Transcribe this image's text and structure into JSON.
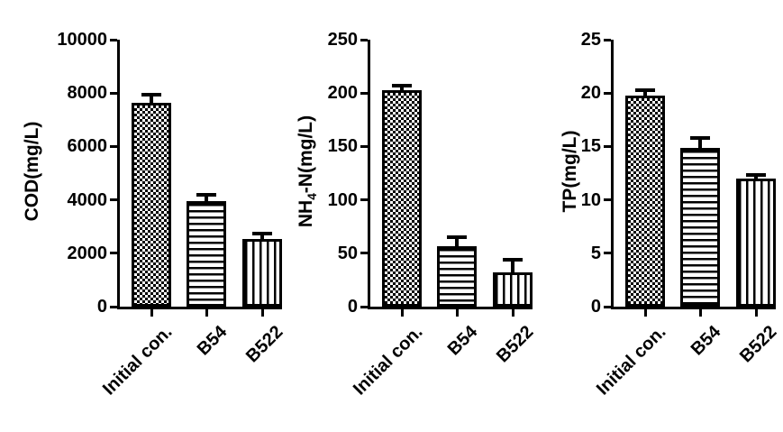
{
  "figure": {
    "background": "#ffffff",
    "ink_color": "#000000",
    "bar_fill": "#ffffff"
  },
  "chart_data": [
    {
      "type": "bar",
      "title": "",
      "ylabel": "COD(mg/L)",
      "ylabel_segments": [
        {
          "text": "COD(mg/L)"
        }
      ],
      "categories": [
        "Initial con.",
        "B54",
        "B522"
      ],
      "values": [
        7650,
        3950,
        2550
      ],
      "errors": [
        280,
        250,
        180
      ],
      "patterns": [
        "checker",
        "hlines",
        "vlines"
      ],
      "ylim": [
        0,
        10000
      ],
      "yticks": [
        0,
        2000,
        4000,
        6000,
        8000,
        10000
      ],
      "grid": false,
      "legend": "none"
    },
    {
      "type": "bar",
      "title": "",
      "ylabel": "NH4-N(mg/L)",
      "ylabel_segments": [
        {
          "text": "NH"
        },
        {
          "text": "4",
          "sub": true
        },
        {
          "text": "-N(mg/L)"
        }
      ],
      "categories": [
        "Initial con.",
        "B54",
        "B522"
      ],
      "values": [
        203,
        57,
        32
      ],
      "errors": [
        4,
        8,
        12
      ],
      "patterns": [
        "checker",
        "hlines",
        "vlines"
      ],
      "ylim": [
        0,
        250
      ],
      "yticks": [
        0,
        50,
        100,
        150,
        200,
        250
      ],
      "grid": false,
      "legend": "none"
    },
    {
      "type": "bar",
      "title": "",
      "ylabel": "TP(mg/L)",
      "ylabel_segments": [
        {
          "text": "TP(mg/L)"
        }
      ],
      "categories": [
        "Initial con.",
        "B54",
        "B522"
      ],
      "values": [
        19.8,
        14.9,
        12.0
      ],
      "errors": [
        0.5,
        0.9,
        0.3
      ],
      "patterns": [
        "checker",
        "hlines",
        "vlines"
      ],
      "ylim": [
        0,
        25
      ],
      "yticks": [
        0,
        5,
        10,
        15,
        20,
        25
      ],
      "grid": false,
      "legend": "none"
    }
  ]
}
